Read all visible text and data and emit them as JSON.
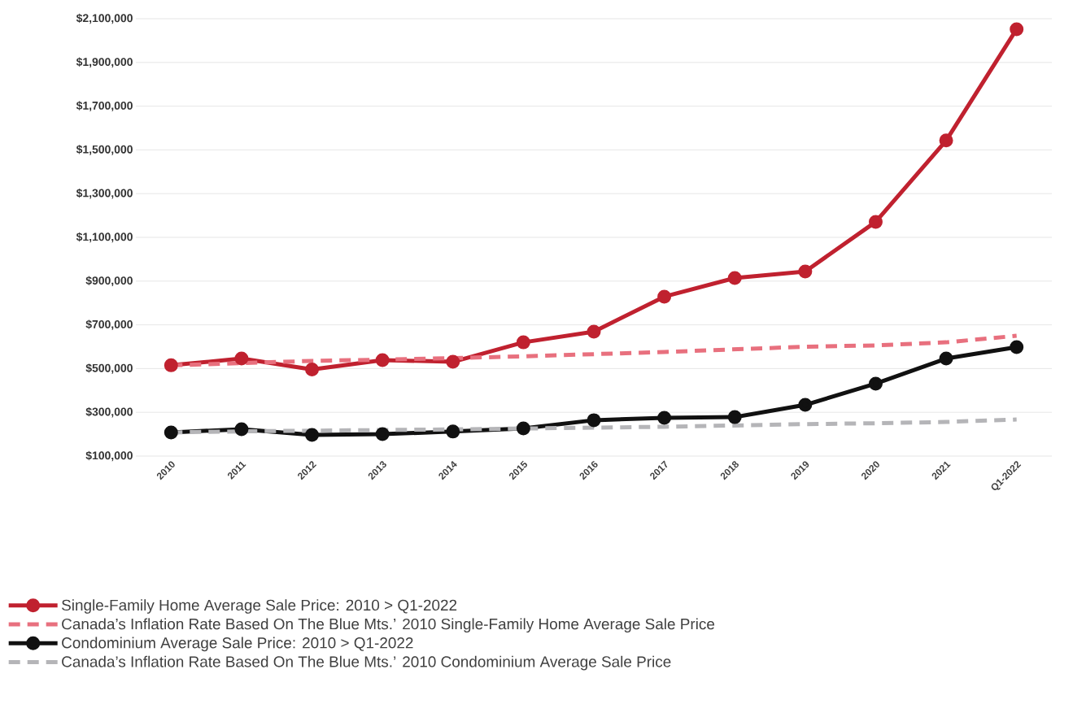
{
  "chart_data": {
    "type": "line",
    "categories": [
      "2010",
      "2011",
      "2012",
      "2013",
      "2014",
      "2015",
      "2016",
      "2017",
      "2018",
      "2019",
      "2020",
      "2021",
      "Q1-2022"
    ],
    "series": [
      {
        "name": "Single-Family Home Average Sale Price:   2010  >  Q1-2022",
        "color": "#c0212f",
        "marker": "circle",
        "line_style": "solid",
        "values": [
          515000,
          546000,
          496000,
          539000,
          531000,
          620000,
          669000,
          829000,
          914000,
          944000,
          1171000,
          1543000,
          2052000
        ]
      },
      {
        "name": "Canada’s Inflation Rate Based On The Blue Mts.’ 2010 Single-Family Home Average Sale Price",
        "color": "#e8707e",
        "marker": "none",
        "line_style": "dashed",
        "values": [
          515000,
          525000,
          535000,
          541000,
          548000,
          556000,
          566000,
          576000,
          588000,
          600000,
          606000,
          620000,
          650000
        ]
      },
      {
        "name": "Condominium Average Sale Price:   2010  >  Q1-2022",
        "color": "#111111",
        "marker": "circle",
        "line_style": "solid",
        "values": [
          208000,
          223000,
          197000,
          200000,
          212000,
          226000,
          264000,
          275000,
          278000,
          334000,
          431000,
          546000,
          598000
        ]
      },
      {
        "name": "Canada’s Inflation Rate Based On The Blue Mts.’ 2010 Condominium Average Sale Price",
        "color": "#b5b5b8",
        "marker": "none",
        "line_style": "dashed",
        "values": [
          208000,
          213000,
          216000,
          219000,
          222000,
          226000,
          230000,
          234000,
          240000,
          246000,
          250000,
          256000,
          267000
        ]
      }
    ],
    "ylim": [
      100000,
      2100000
    ],
    "yticks": [
      {
        "value": 100000,
        "label": "$100,000"
      },
      {
        "value": 300000,
        "label": "$300,000"
      },
      {
        "value": 500000,
        "label": "$500,000"
      },
      {
        "value": 700000,
        "label": "$700,000"
      },
      {
        "value": 900000,
        "label": "$900,000"
      },
      {
        "value": 1100000,
        "label": "$1,100,000"
      },
      {
        "value": 1300000,
        "label": "$1,300,000"
      },
      {
        "value": 1500000,
        "label": "$1,500,000"
      },
      {
        "value": 1700000,
        "label": "$1,700,000"
      },
      {
        "value": 1900000,
        "label": "$1,900,000"
      },
      {
        "value": 2100000,
        "label": "$2,100,000"
      }
    ],
    "grid": "y",
    "legend": "bottom"
  }
}
